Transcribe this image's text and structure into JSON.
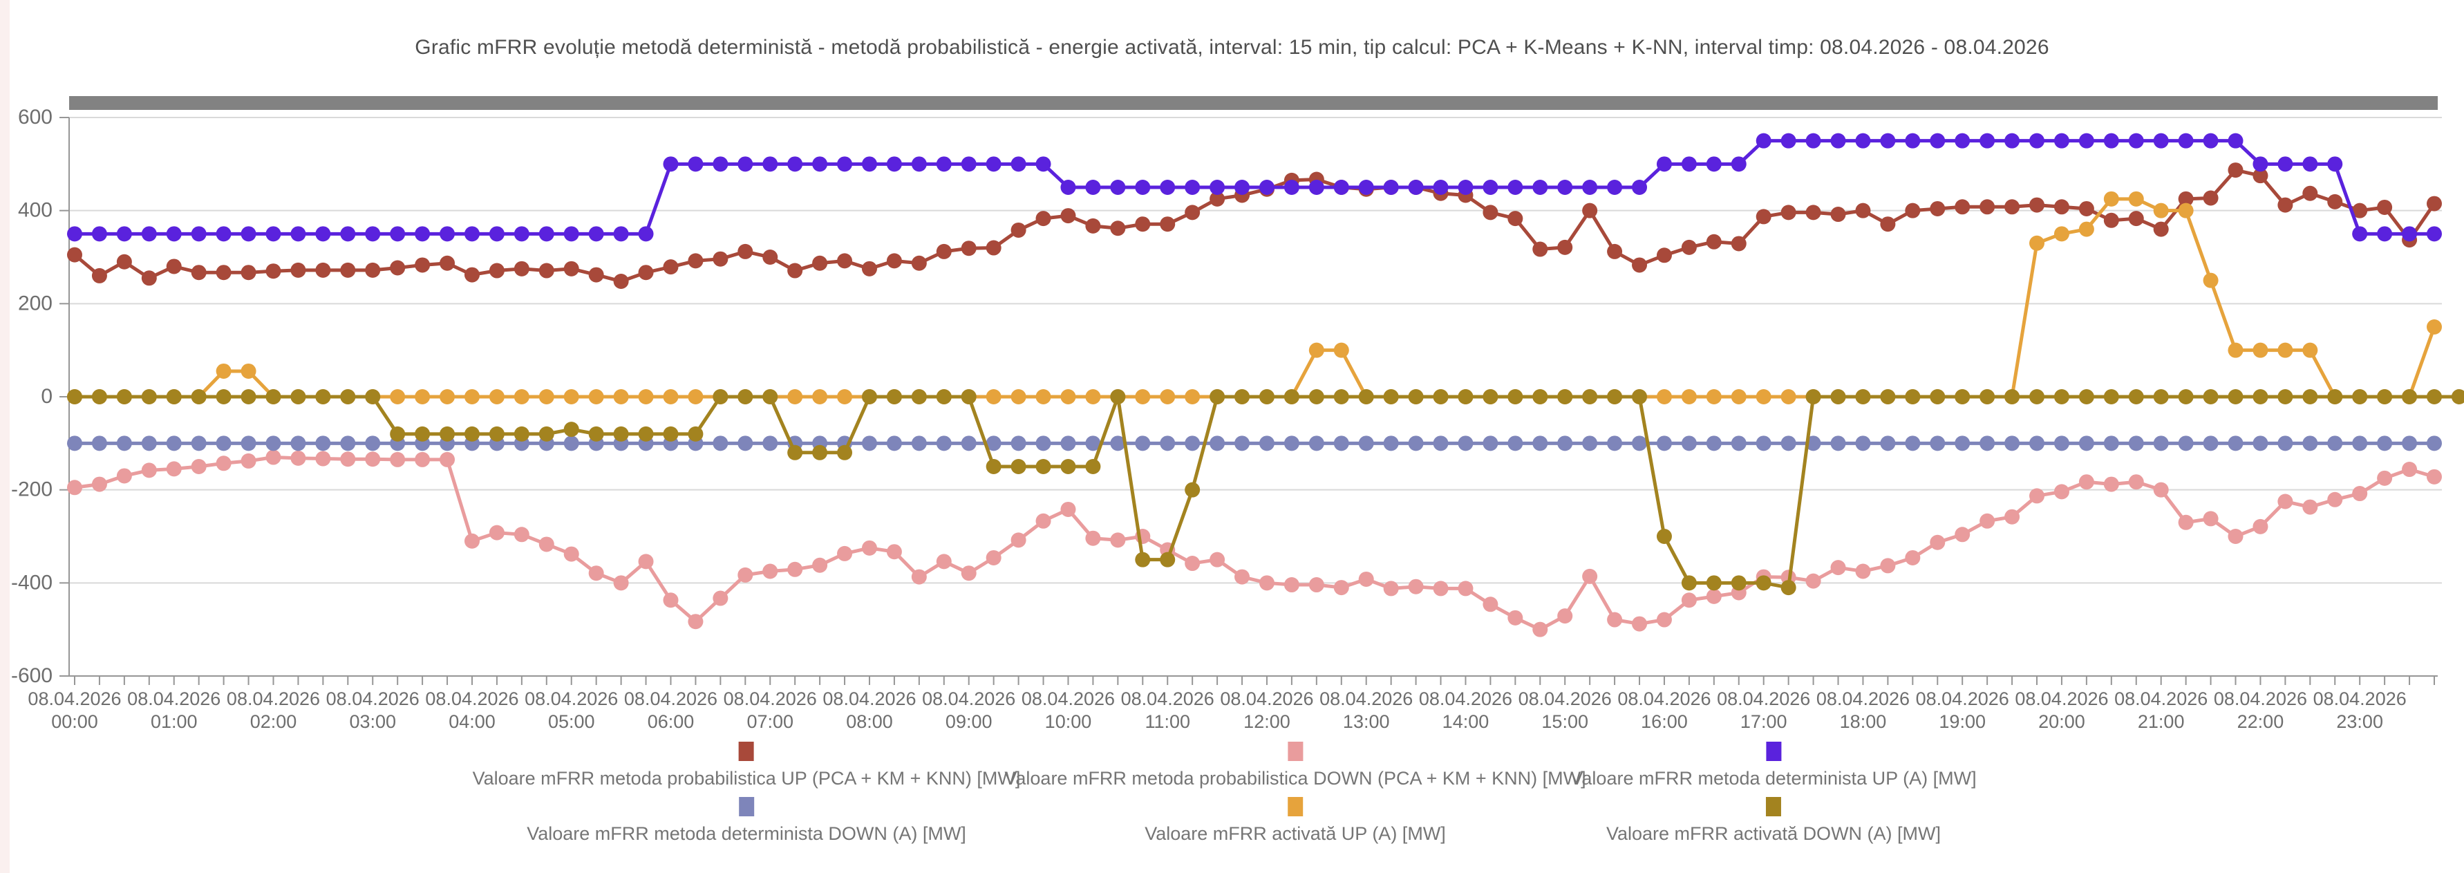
{
  "title": "Grafic mFRR evoluție metodă deterministă - metodă probabilistică - energie activată, interval: 15 min, tip calcul: PCA + K-Means + K-NN, interval timp: 08.04.2026 - 08.04.2026",
  "colors": {
    "background": "#ffffff",
    "grid": "#d9d9d9",
    "axis": "#969696",
    "axis_text": "#6e6e6e",
    "title_text": "#4f4f4f",
    "legend_text": "#757575",
    "scrollbar": "#828282"
  },
  "chart_data": {
    "type": "line",
    "title": "Grafic mFRR evoluție metodă deterministă - metodă probabilistică - energie activată",
    "interval": "15 min",
    "x_date": "08.04.2026",
    "x_hour_labels": [
      "00:00",
      "01:00",
      "02:00",
      "03:00",
      "04:00",
      "05:00",
      "06:00",
      "07:00",
      "08:00",
      "09:00",
      "10:00",
      "11:00",
      "12:00",
      "13:00",
      "14:00",
      "15:00",
      "16:00",
      "17:00",
      "18:00",
      "19:00",
      "20:00",
      "21:00",
      "22:00",
      "23:00"
    ],
    "points_per_hour": 4,
    "ylabel": "",
    "xlabel": "",
    "ylim": [
      -600,
      600
    ],
    "yticks": [
      600,
      400,
      200,
      0,
      -200,
      -400,
      -600
    ],
    "grid": true,
    "legend_position": "bottom",
    "marker": "circle",
    "series": [
      {
        "name": "Valoare mFRR metoda probabilistica UP (PCA + KM + KNN) [MW]",
        "color": "#a8493a",
        "values": [
          305,
          260,
          290,
          255,
          280,
          267,
          267,
          267,
          270,
          272,
          272,
          272,
          272,
          277,
          283,
          287,
          262,
          271,
          275,
          271,
          275,
          262,
          248,
          267,
          279,
          292,
          296,
          312,
          300,
          271,
          287,
          292,
          275,
          292,
          287,
          312,
          319,
          320,
          358,
          383,
          389,
          367,
          362,
          371,
          371,
          396,
          425,
          433,
          446,
          465,
          467,
          450,
          446,
          450,
          450,
          437,
          433,
          396,
          383,
          317,
          321,
          400,
          312,
          283,
          304,
          321,
          333,
          329,
          387,
          396,
          396,
          392,
          400,
          371,
          400,
          404,
          408,
          408,
          408,
          412,
          408,
          404,
          379,
          383,
          360,
          425,
          427,
          487,
          475,
          412,
          437,
          419,
          400,
          407,
          337,
          415
        ]
      },
      {
        "name": "Valoare mFRR metoda probabilistica DOWN (PCA + KM + KNN) [MW]",
        "color": "#e99c9d",
        "values": [
          -195,
          -188,
          -170,
          -158,
          -155,
          -150,
          -143,
          -138,
          -130,
          -132,
          -133,
          -134,
          -134,
          -135,
          -135,
          -135,
          -310,
          -292,
          -296,
          -317,
          -338,
          -379,
          -400,
          -354,
          -437,
          -483,
          -433,
          -383,
          -375,
          -371,
          -362,
          -337,
          -325,
          -333,
          -387,
          -354,
          -379,
          -346,
          -308,
          -267,
          -242,
          -304,
          -308,
          -300,
          -329,
          -358,
          -350,
          -387,
          -400,
          -404,
          -404,
          -410,
          -392,
          -412,
          -408,
          -412,
          -412,
          -446,
          -475,
          -500,
          -471,
          -386,
          -479,
          -488,
          -479,
          -437,
          -429,
          -421,
          -387,
          -388,
          -396,
          -367,
          -375,
          -363,
          -346,
          -313,
          -296,
          -267,
          -258,
          -213,
          -204,
          -183,
          -188,
          -183,
          -200,
          -270,
          -262,
          -300,
          -279,
          -225,
          -237,
          -221,
          -208,
          -175,
          -156,
          -172
        ]
      },
      {
        "name": "Valoare mFRR metoda determinista UP (A) [MW]",
        "color": "#5a22dd",
        "values": [
          350,
          350,
          350,
          350,
          350,
          350,
          350,
          350,
          350,
          350,
          350,
          350,
          350,
          350,
          350,
          350,
          350,
          350,
          350,
          350,
          350,
          350,
          350,
          350,
          500,
          500,
          500,
          500,
          500,
          500,
          500,
          500,
          500,
          500,
          500,
          500,
          500,
          500,
          500,
          500,
          450,
          450,
          450,
          450,
          450,
          450,
          450,
          450,
          450,
          450,
          450,
          450,
          450,
          450,
          450,
          450,
          450,
          450,
          450,
          450,
          450,
          450,
          450,
          450,
          500,
          500,
          500,
          500,
          550,
          550,
          550,
          550,
          550,
          550,
          550,
          550,
          550,
          550,
          550,
          550,
          550,
          550,
          550,
          550,
          550,
          550,
          550,
          550,
          500,
          500,
          500,
          500,
          350,
          350,
          350,
          350
        ]
      },
      {
        "name": "Valoare mFRR metoda determinista DOWN (A) [MW]",
        "color": "#7e85ba",
        "values": [
          -100,
          -100,
          -100,
          -100,
          -100,
          -100,
          -100,
          -100,
          -100,
          -100,
          -100,
          -100,
          -100,
          -100,
          -100,
          -100,
          -100,
          -100,
          -100,
          -100,
          -100,
          -100,
          -100,
          -100,
          -100,
          -100,
          -100,
          -100,
          -100,
          -100,
          -100,
          -100,
          -100,
          -100,
          -100,
          -100,
          -100,
          -100,
          -100,
          -100,
          -100,
          -100,
          -100,
          -100,
          -100,
          -100,
          -100,
          -100,
          -100,
          -100,
          -100,
          -100,
          -100,
          -100,
          -100,
          -100,
          -100,
          -100,
          -100,
          -100,
          -100,
          -100,
          -100,
          -100,
          -100,
          -100,
          -100,
          -100,
          -100,
          -100,
          -100,
          -100,
          -100,
          -100,
          -100,
          -100,
          -100,
          -100,
          -100,
          -100,
          -100,
          -100,
          -100,
          -100,
          -100,
          -100,
          -100,
          -100,
          -100,
          -100,
          -100,
          -100,
          -100,
          -100,
          -100,
          -100
        ]
      },
      {
        "name": "Valoare mFRR activată UP (A) [MW]",
        "color": "#e6a33c",
        "values": [
          0,
          0,
          0,
          0,
          0,
          0,
          55,
          55,
          0,
          0,
          0,
          0,
          0,
          0,
          0,
          0,
          0,
          0,
          0,
          0,
          0,
          0,
          0,
          0,
          0,
          0,
          0,
          0,
          0,
          0,
          0,
          0,
          0,
          0,
          0,
          0,
          0,
          0,
          0,
          0,
          0,
          0,
          0,
          0,
          0,
          0,
          0,
          0,
          0,
          0,
          100,
          100,
          0,
          0,
          0,
          0,
          0,
          0,
          0,
          0,
          0,
          0,
          0,
          0,
          0,
          0,
          0,
          0,
          0,
          0,
          0,
          0,
          0,
          0,
          0,
          0,
          0,
          0,
          0,
          330,
          350,
          360,
          425,
          425,
          400,
          400,
          250,
          100,
          100,
          100,
          100,
          0,
          0,
          0,
          0,
          150
        ]
      },
      {
        "name": "Valoare mFRR activată DOWN (A) [MW]",
        "color": "#a3831f",
        "values": [
          0,
          0,
          0,
          0,
          0,
          0,
          0,
          0,
          0,
          0,
          0,
          0,
          0,
          -80,
          -80,
          -80,
          -80,
          -80,
          -80,
          -80,
          -70,
          -80,
          -80,
          -80,
          -80,
          -80,
          0,
          0,
          0,
          -120,
          -120,
          -120,
          0,
          0,
          0,
          0,
          0,
          -150,
          -150,
          -150,
          -150,
          -150,
          0,
          -350,
          -350,
          -200,
          0,
          0,
          0,
          0,
          0,
          0,
          0,
          0,
          0,
          0,
          0,
          0,
          0,
          0,
          0,
          0,
          0,
          0,
          -300,
          -400,
          -400,
          -400,
          -400,
          -410,
          0,
          0,
          0,
          0,
          0,
          0,
          0,
          0,
          0,
          0,
          0,
          0,
          0,
          0,
          0,
          0,
          0,
          0,
          0,
          0,
          0,
          0,
          0,
          0,
          0,
          0,
          0
        ]
      }
    ],
    "legend_rows": [
      [
        0,
        1,
        2
      ],
      [
        3,
        4,
        5
      ]
    ]
  },
  "legend": {
    "row1_labels": [
      "Valoare mFRR metoda probabilistica UP (PCA + KM + KNN) [MW]",
      "Valoare mFRR metoda probabilistica DOWN (PCA + KM + KNN) [MW]",
      "Valoare mFRR metoda determinista UP (A) [MW]"
    ],
    "row2_labels": [
      "Valoare mFRR metoda determinista DOWN (A) [MW]",
      "Valoare mFRR activată UP (A) [MW]",
      "Valoare mFRR activată DOWN (A) [MW]"
    ]
  }
}
